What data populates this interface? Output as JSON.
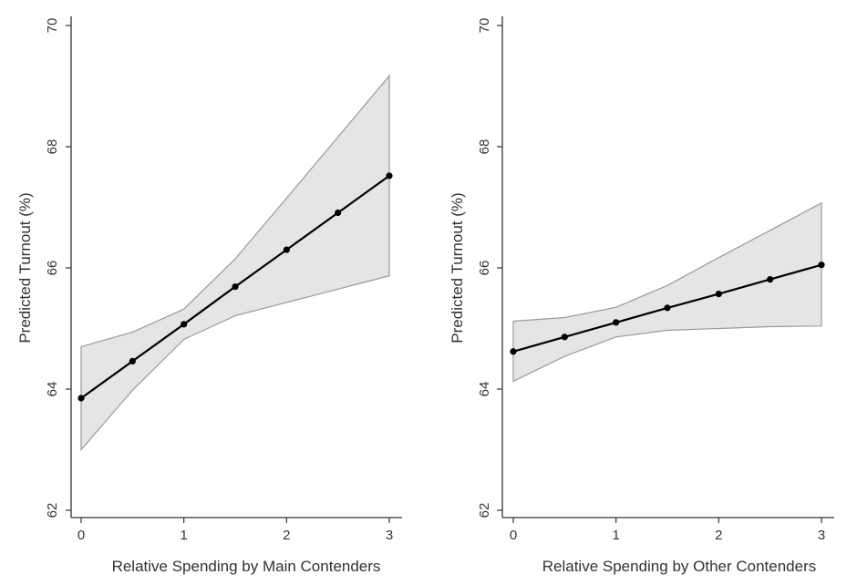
{
  "chart_data": [
    {
      "type": "line",
      "title": "",
      "xlabel": "Relative Spending by Main Contenders",
      "ylabel": "Predicted Turnout (%)",
      "xlim": [
        0,
        3
      ],
      "ylim": [
        62,
        70
      ],
      "x_ticks": [
        "0",
        "1",
        "2",
        "3"
      ],
      "y_ticks": [
        "62",
        "64",
        "66",
        "68",
        "70"
      ],
      "grid": false,
      "series": [
        {
          "x": [
            0,
            0.5,
            1,
            1.5,
            2,
            2.5,
            3
          ],
          "y": [
            63.85,
            64.46,
            65.07,
            65.69,
            66.3,
            66.91,
            67.52
          ],
          "ci_lower": [
            63.0,
            63.98,
            64.82,
            65.21,
            65.43,
            65.65,
            65.87
          ],
          "ci_upper": [
            64.7,
            64.94,
            65.32,
            66.15,
            67.15,
            68.16,
            69.17
          ],
          "color": "#000000"
        }
      ],
      "band_color": "#e5e5e5"
    },
    {
      "type": "line",
      "title": "",
      "xlabel": "Relative Spending by Other Contenders",
      "ylabel": "Predicted Turnout (%)",
      "xlim": [
        0,
        3
      ],
      "ylim": [
        62,
        70
      ],
      "x_ticks": [
        "0",
        "1",
        "2",
        "3"
      ],
      "y_ticks": [
        "62",
        "64",
        "66",
        "68",
        "70"
      ],
      "grid": false,
      "series": [
        {
          "x": [
            0,
            0.5,
            1,
            1.5,
            2,
            2.5,
            3
          ],
          "y": [
            64.62,
            64.86,
            65.1,
            65.34,
            65.57,
            65.81,
            66.05
          ],
          "ci_lower": [
            64.13,
            64.54,
            64.86,
            64.97,
            65.0,
            65.03,
            65.04
          ],
          "ci_upper": [
            65.12,
            65.18,
            65.35,
            65.71,
            66.17,
            66.62,
            67.07
          ],
          "color": "#000000"
        }
      ],
      "band_color": "#e5e5e5"
    }
  ]
}
